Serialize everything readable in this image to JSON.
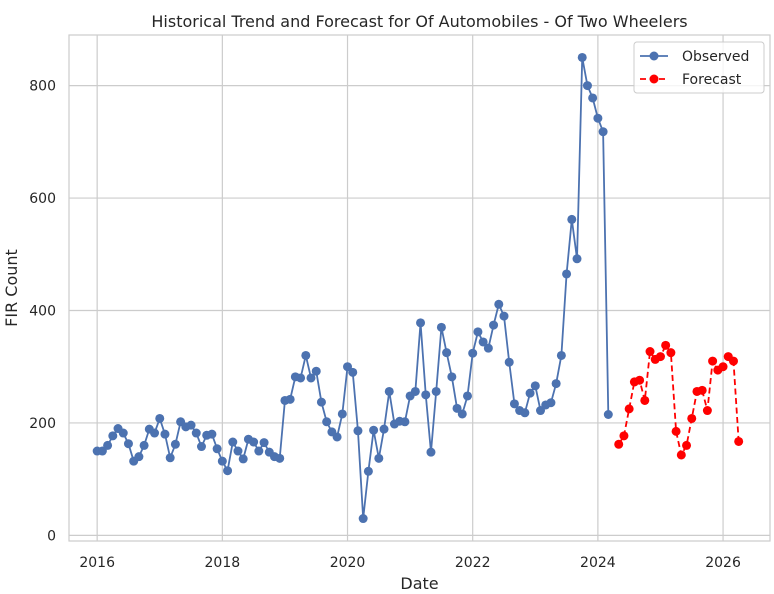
{
  "chart_data": {
    "type": "line",
    "title": "Historical Trend and Forecast for Of Automobiles - Of Two Wheelers",
    "xlabel": "Date",
    "ylabel": "FIR Count",
    "xlim": [
      2015.55,
      2026.75
    ],
    "ylim": [
      -10,
      890
    ],
    "xticks": [
      2016,
      2018,
      2020,
      2022,
      2024,
      2026
    ],
    "yticks": [
      0,
      200,
      400,
      600,
      800
    ],
    "grid": true,
    "legend_position": "top-right",
    "series": [
      {
        "name": "Observed",
        "color": "#4c72b0",
        "style": "solid",
        "start": 2016,
        "step_months": 1,
        "values": [
          150,
          150,
          160,
          177,
          190,
          182,
          163,
          132,
          140,
          160,
          189,
          182,
          208,
          180,
          138,
          162,
          202,
          193,
          196,
          182,
          158,
          178,
          180,
          154,
          132,
          115,
          166,
          150,
          136,
          171,
          166,
          150,
          165,
          148,
          140,
          137,
          240,
          242,
          282,
          280,
          320,
          280,
          292,
          237,
          202,
          184,
          175,
          216,
          300,
          290,
          186,
          30,
          114,
          187,
          137,
          189,
          256,
          198,
          203,
          202,
          248,
          256,
          378,
          250,
          148,
          256,
          370,
          325,
          282,
          226,
          216,
          248,
          324,
          362,
          344,
          333,
          374,
          411,
          390,
          308,
          234,
          222,
          218,
          253,
          266,
          222,
          232,
          236,
          270,
          320,
          465,
          562,
          492,
          850,
          800,
          778,
          742,
          718,
          215
        ]
      },
      {
        "name": "Forecast",
        "color": "#ff0000",
        "style": "dashed",
        "start": 2024.333,
        "step_months": 1,
        "values": [
          162,
          177,
          225,
          273,
          276,
          240,
          327,
          313,
          318,
          338,
          325,
          185,
          143,
          160,
          208,
          256,
          258,
          222,
          310,
          294,
          300,
          318,
          310,
          167
        ]
      }
    ]
  }
}
